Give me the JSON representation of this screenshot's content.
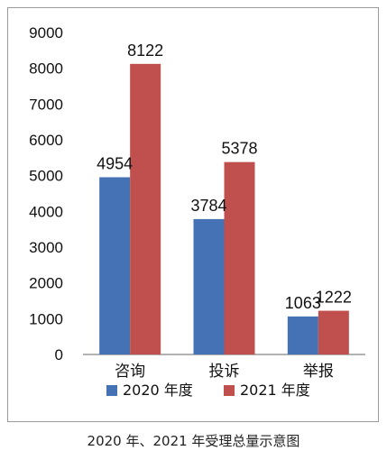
{
  "chart_data": {
    "type": "bar",
    "categories": [
      "咨询",
      "投诉",
      "举报"
    ],
    "series": [
      {
        "name": "2020 年度",
        "values": [
          4954,
          3784,
          1063
        ],
        "color": "#4472b4"
      },
      {
        "name": "2021 年度",
        "values": [
          8122,
          5378,
          1222
        ],
        "color": "#c0504d"
      }
    ],
    "yticks": [
      "0",
      "1000",
      "2000",
      "3000",
      "4000",
      "5000",
      "6000",
      "7000",
      "8000",
      "9000"
    ],
    "ylim": [
      0,
      9000
    ],
    "grid": false,
    "legend": "bottom",
    "caption": "2020 年、2021 年受理总量示意图"
  }
}
